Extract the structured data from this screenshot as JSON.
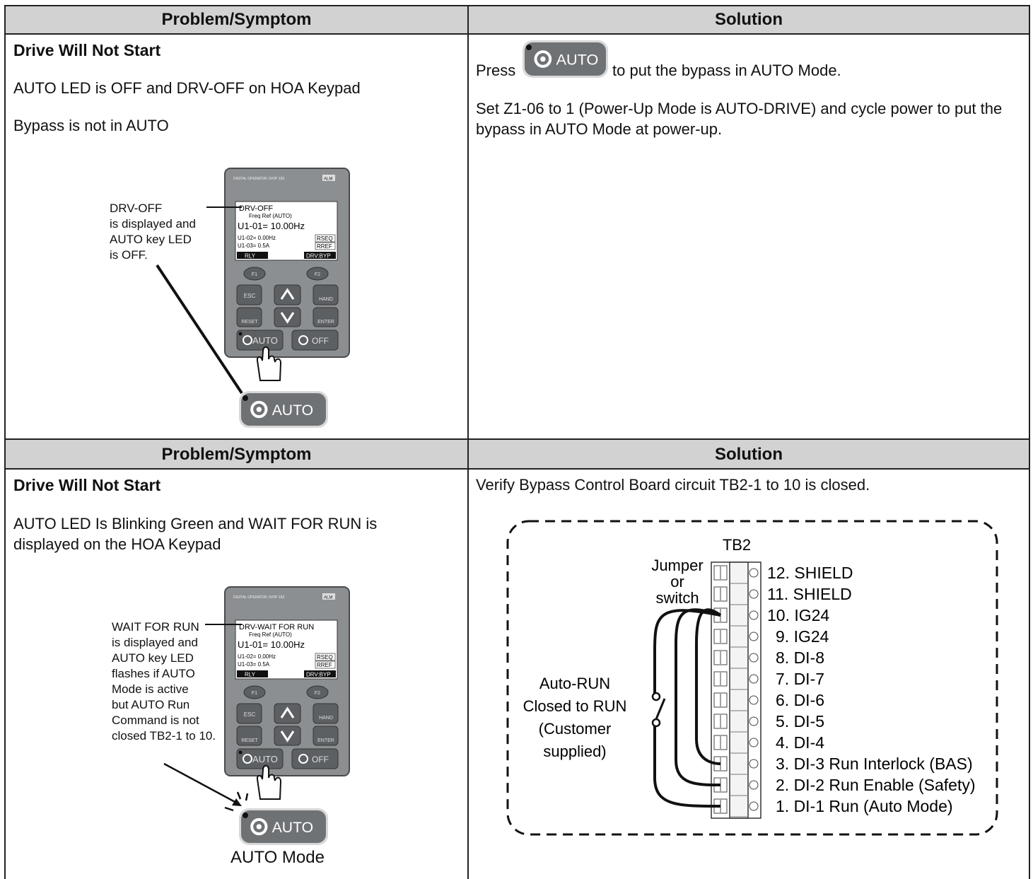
{
  "sections": [
    {
      "header": [
        "Problem/Symptom",
        "Solution"
      ],
      "problem": {
        "title": "Drive Will Not Start",
        "lines": [
          "AUTO LED is OFF and DRV-OFF on HOA Keypad",
          "Bypass is not in AUTO"
        ],
        "callout": [
          "DRV-OFF",
          "is displayed and",
          "AUTO key LED",
          "is OFF."
        ],
        "screen_line": "DRV-OFF",
        "button": "AUTO"
      },
      "solution": {
        "press": "Press",
        "button": "AUTO",
        "press_after": "to put the bypass in AUTO Mode.",
        "paragraph": "Set Z1-06 to 1 (Power-Up Mode is AUTO-DRIVE) and cycle power to put the bypass in AUTO Mode at power-up."
      }
    },
    {
      "header": [
        "Problem/Symptom",
        "Solution"
      ],
      "problem": {
        "title": "Drive Will Not Start",
        "lines": [
          "AUTO LED Is Blinking Green and WAIT FOR RUN is displayed on the HOA Keypad"
        ],
        "callout": [
          "WAIT FOR RUN",
          "is displayed and",
          "AUTO key LED",
          "flashes if AUTO",
          "Mode is active",
          "but AUTO Run",
          "Command is not",
          "closed TB2-1 to 10."
        ],
        "screen_line": "DRV-WAIT FOR RUN",
        "button": "AUTO",
        "caption": "AUTO Mode"
      },
      "solution": {
        "paragraph": "Verify Bypass Control Board circuit TB2-1 to 10 is closed.",
        "diagram": {
          "title": "TB2",
          "jumper": [
            "Jumper",
            "or",
            "switch"
          ],
          "auto_run": [
            "Auto-RUN",
            "Closed to RUN",
            "(Customer",
            "supplied)"
          ],
          "terminals": [
            "12. SHIELD",
            "11. SHIELD",
            "10. IG24",
            "9. IG24",
            "8. DI-8",
            "7. DI-7",
            "6. DI-6",
            "5. DI-5",
            "4. DI-4",
            "3. DI-3 Run Interlock (BAS)",
            "2. DI-2 Run Enable (Safety)",
            "1. DI-1 Run (Auto Mode)"
          ]
        }
      }
    }
  ],
  "keypad": {
    "brand": "DIGITAL OPERATOR JVOP-183",
    "alm": "ALM",
    "screen": [
      "Freq Ref (AUTO)",
      "U1-01= 10.00Hz",
      "U1-02= 0.00Hz",
      "U1-03= 0.5A"
    ],
    "tags": [
      "RSEQ",
      "RREF"
    ],
    "soft": [
      "RLY",
      "DRV:BYP"
    ],
    "keys": [
      "F1",
      "F2",
      "ESC",
      "HAND",
      "RESET",
      "ENTER",
      "AUTO",
      "OFF"
    ]
  }
}
